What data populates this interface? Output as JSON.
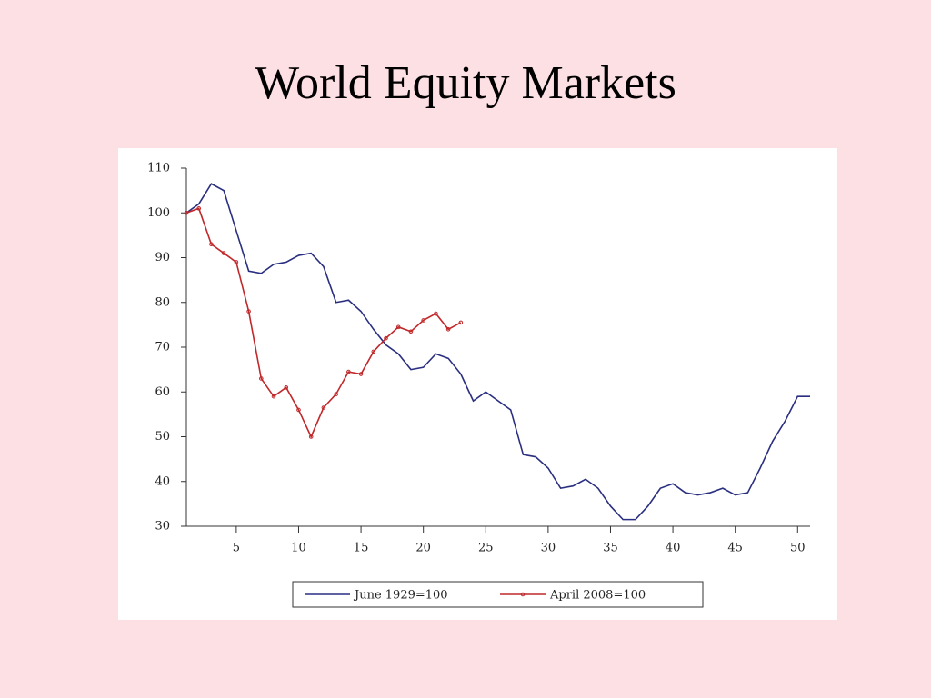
{
  "title": "World Equity Markets",
  "chart_data": {
    "type": "line",
    "x": [
      1,
      2,
      3,
      4,
      5,
      6,
      7,
      8,
      9,
      10,
      11,
      12,
      13,
      14,
      15,
      16,
      17,
      18,
      19,
      20,
      21,
      22,
      23,
      24,
      25,
      26,
      27,
      28,
      29,
      30,
      31,
      32,
      33,
      34,
      35,
      36,
      37,
      38,
      39,
      40,
      41,
      42,
      43,
      44,
      45,
      46,
      47,
      48,
      49,
      50,
      51
    ],
    "series": [
      {
        "name": "June 1929=100",
        "color": "#2a2f80",
        "values": [
          100,
          102,
          106.5,
          105,
          96,
          87,
          86.5,
          88.5,
          89,
          90.5,
          91,
          88,
          80,
          80.5,
          78,
          74,
          70.5,
          68.5,
          65,
          65.5,
          68.5,
          67.5,
          64,
          58,
          60,
          58,
          56,
          46,
          45.5,
          43,
          38.5,
          39,
          40.5,
          38.5,
          34.5,
          31.5,
          31.5,
          34.5,
          38.5,
          39.5,
          37.5,
          37,
          37.5,
          38.5,
          37,
          37.5,
          43,
          49,
          53.5,
          59,
          59
        ]
      },
      {
        "name": "April 2008=100",
        "color": "#c0282a",
        "markers": true,
        "values": [
          100,
          101,
          93,
          91,
          89,
          78,
          63,
          59,
          61,
          56,
          50,
          56.5,
          59.5,
          64.5,
          64,
          69,
          72,
          74.5,
          73.5,
          76,
          77.5,
          74,
          75.5,
          null,
          null,
          null,
          null,
          null,
          null,
          null,
          null,
          null,
          null,
          null,
          null,
          null,
          null,
          null,
          null,
          null,
          null,
          null,
          null,
          null,
          null,
          null,
          null,
          null,
          null,
          null,
          null
        ]
      }
    ],
    "xlim": [
      1,
      51
    ],
    "xticks": [
      5,
      10,
      15,
      20,
      25,
      30,
      35,
      40,
      45,
      50
    ],
    "ylim": [
      30,
      110
    ],
    "yticks": [
      30,
      40,
      50,
      60,
      70,
      80,
      90,
      100,
      110
    ]
  }
}
